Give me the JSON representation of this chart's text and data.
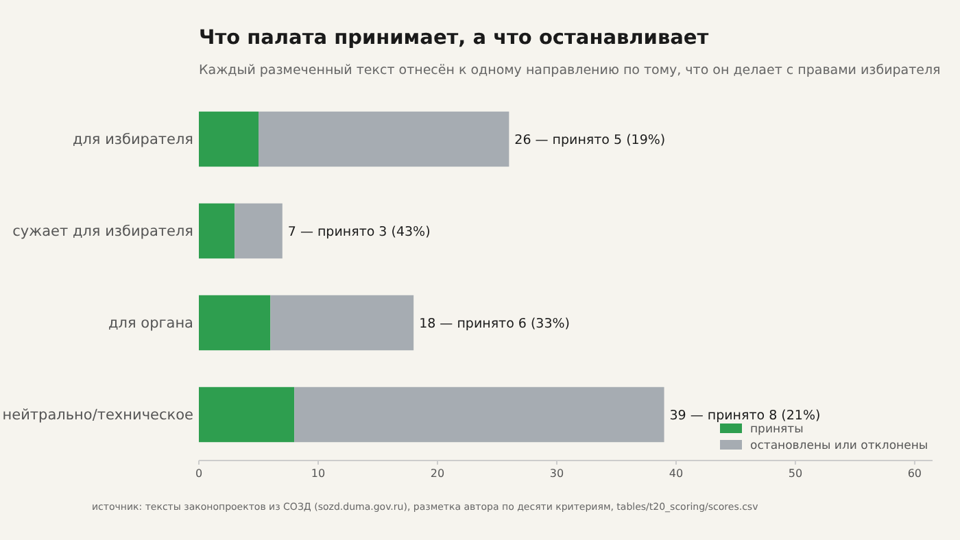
{
  "chart_data": {
    "type": "bar",
    "orientation": "horizontal",
    "stacked": true,
    "title": "Что палата принимает, а что останавливает",
    "subtitle": "Каждый размеченный текст отнесён к одному направлению по тому, что он делает с правами избирателя",
    "categories": [
      "для избирателя",
      "сужает для избирателя",
      "для органа",
      "нейтрально/техническое"
    ],
    "series": [
      {
        "name": "приняты",
        "color": "#2e9e4f",
        "values": [
          5,
          3,
          6,
          8
        ]
      },
      {
        "name": "остановлены или отклонены",
        "color": "#a6acb2",
        "values": [
          21,
          4,
          12,
          31
        ]
      }
    ],
    "totals": [
      "26 — принято 5 (19%)",
      "7 — принято 3 (43%)",
      "18 — принято 6 (33%)",
      "39 — принято 8 (21%)"
    ],
    "xlim": [
      0,
      61.5
    ],
    "xticks": [
      0,
      10,
      20,
      30,
      40,
      50,
      60
    ],
    "legend": "bottom right",
    "annotations": [
      "источник: тексты законопроектов из СОЗД (sozd.duma.gov.ru), разметка автора по десяти критериям, tables/t20_scoring/scores.csv"
    ]
  }
}
